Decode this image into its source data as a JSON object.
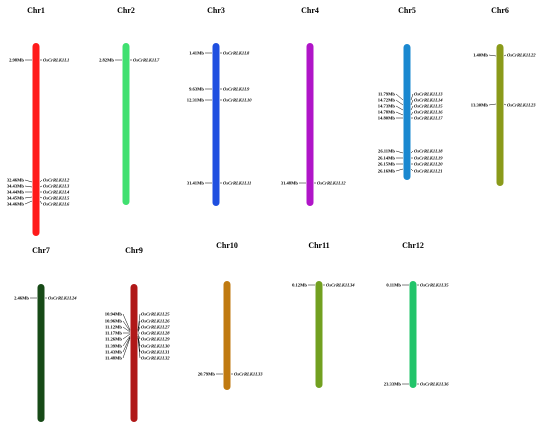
{
  "chromosomes": [
    {
      "name": "Chr1",
      "color": "#ff1a1a",
      "genes": [
        {
          "pos": "2.98Mb",
          "gene": "OsCrRLK1L1"
        },
        {
          "pos": "32.46Mb",
          "gene": "OsCrRLK1L2"
        },
        {
          "pos": "34.43Mb",
          "gene": "OsCrRLK1L3"
        },
        {
          "pos": "34.44Mb",
          "gene": "OsCrRLK1L4"
        },
        {
          "pos": "34.45Mb",
          "gene": "OsCrRLK1L5"
        },
        {
          "pos": "34.46Mb",
          "gene": "OsCrRLK1L6"
        }
      ]
    },
    {
      "name": "Chr2",
      "color": "#40e070",
      "genes": [
        {
          "pos": "2.82Mb",
          "gene": "OsCrRLK1L7"
        }
      ]
    },
    {
      "name": "Chr3",
      "color": "#1f4fe0",
      "genes": [
        {
          "pos": "1.41Mb",
          "gene": "OsCrRLK1L8"
        },
        {
          "pos": "9.63Mb",
          "gene": "OsCrRLK1L9"
        },
        {
          "pos": "12.31Mb",
          "gene": "OsCrRLK1L10"
        },
        {
          "pos": "31.41Mb",
          "gene": "OsCrRLK1L11"
        }
      ]
    },
    {
      "name": "Chr4",
      "color": "#b015c8",
      "genes": [
        {
          "pos": "31.48Mb",
          "gene": "OsCrRLK1L12"
        }
      ]
    },
    {
      "name": "Chr5",
      "color": "#1a88d0",
      "genes": [
        {
          "pos": "11.79Mb",
          "gene": "OsCrRLK1L13"
        },
        {
          "pos": "14.72Mb",
          "gene": "OsCrRLK1L14"
        },
        {
          "pos": "14.73Mb",
          "gene": "OsCrRLK1L15"
        },
        {
          "pos": "14.78Mb",
          "gene": "OsCrRLK1L16"
        },
        {
          "pos": "14.80Mb",
          "gene": "OsCrRLK1L17"
        },
        {
          "pos": "26.11Mb",
          "gene": "OsCrRLK1L18"
        },
        {
          "pos": "26.14Mb",
          "gene": "OsCrRLK1L19"
        },
        {
          "pos": "26.15Mb",
          "gene": "OsCrRLK1L20"
        },
        {
          "pos": "26.16Mb",
          "gene": "OsCrRLK1L21"
        }
      ]
    },
    {
      "name": "Chr6",
      "color": "#8a9a1a",
      "genes": [
        {
          "pos": "1.40Mb",
          "gene": "OsCrRLK1L22"
        },
        {
          "pos": "13.30Mb",
          "gene": "OsCrRLK1L23"
        }
      ]
    },
    {
      "name": "Chr7",
      "color": "#174a17",
      "genes": [
        {
          "pos": "2.46Mb",
          "gene": "OsCrRLK1L24"
        }
      ]
    },
    {
      "name": "Chr9",
      "color": "#b01818",
      "genes": [
        {
          "pos": "10.94Mb",
          "gene": "OsCrRLK1L25"
        },
        {
          "pos": "10.96Mb",
          "gene": "OsCrRLK1L26"
        },
        {
          "pos": "11.12Mb",
          "gene": "OsCrRLK1L27"
        },
        {
          "pos": "11.17Mb",
          "gene": "OsCrRLK1L28"
        },
        {
          "pos": "11.26Mb",
          "gene": "OsCrRLK1L29"
        },
        {
          "pos": "11.39Mb",
          "gene": "OsCrRLK1L30"
        },
        {
          "pos": "11.43Mb",
          "gene": "OsCrRLK1L31"
        },
        {
          "pos": "11.48Mb",
          "gene": "OsCrRLK1L32"
        }
      ]
    },
    {
      "name": "Chr10",
      "color": "#c07a10",
      "genes": [
        {
          "pos": "20.79Mb",
          "gene": "OsCrRLK1L33"
        }
      ]
    },
    {
      "name": "Chr11",
      "color": "#72a020",
      "genes": [
        {
          "pos": "0.12Mb",
          "gene": "OsCrRLK1L34"
        }
      ]
    },
    {
      "name": "Chr12",
      "color": "#22c46a",
      "genes": [
        {
          "pos": "0.11Mb",
          "gene": "OsCrRLK1L35"
        },
        {
          "pos": "23.33Mb",
          "gene": "OsCrRLK1L36"
        }
      ]
    }
  ]
}
